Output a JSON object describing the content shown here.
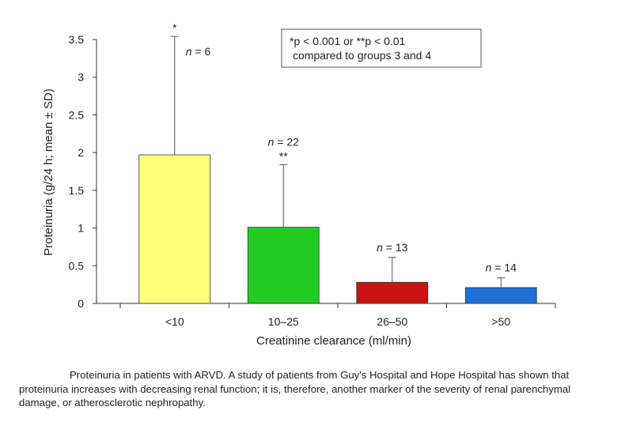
{
  "chart_data": {
    "type": "bar",
    "categories": [
      "<10",
      "10–25",
      "26–50",
      ">50"
    ],
    "values": [
      1.97,
      1.01,
      0.28,
      0.21
    ],
    "sd_upper": [
      3.54,
      1.84,
      0.61,
      0.34
    ],
    "n_labels": [
      "n = 6",
      "n = 22",
      "n = 13",
      "n = 14"
    ],
    "significance": [
      "*",
      "**",
      "",
      ""
    ],
    "colors": [
      "#ffff7a",
      "#22cc22",
      "#cc1111",
      "#1f6fd6"
    ],
    "ylim": [
      0,
      3.5
    ],
    "yticks": [
      "0",
      "0.5",
      "1",
      "1.5",
      "2",
      "2.5",
      "3",
      "3.5"
    ],
    "xlabel": "Creatinine clearance (ml/min)",
    "ylabel": "Proteinuria (g/24 h; mean ± SD)",
    "annotation_lines": [
      "*p < 0.001 or **p < 0.01",
      "compared to groups 3 and 4"
    ]
  },
  "caption": "Proteinuria in patients with ARVD. A study of patients from Guy's Hospital and Hope Hospital has shown that proteinuria increases with decreasing renal function; it is, therefore, another marker of the severity of renal parenchymal damage, or atherosclerotic nephropathy."
}
